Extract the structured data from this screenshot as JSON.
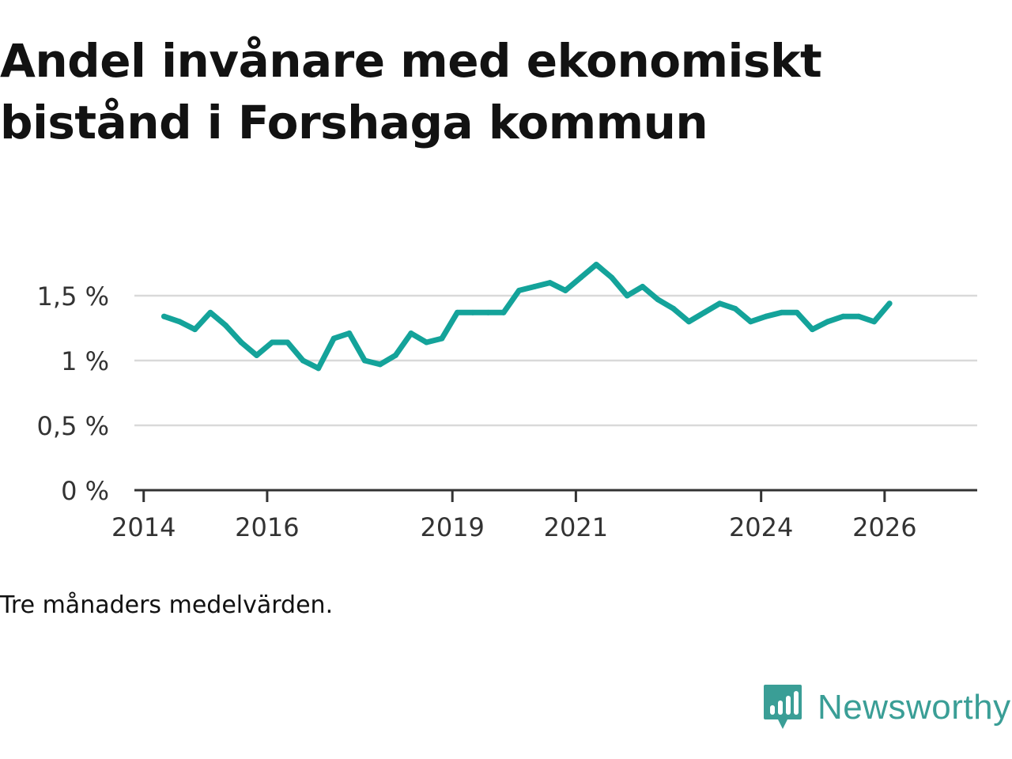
{
  "header": {
    "title_line1": "Andel invånare med ekonomiskt",
    "title_line2": "bistånd i Forshaga kommun"
  },
  "footer": {
    "note": "Tre månaders medelvärden.",
    "brand": "Newsworthy",
    "brand_icon": "newsworthy-logo-icon"
  },
  "colors": {
    "line": "#14a39a",
    "grid": "#d9d9d9",
    "axis": "#333333",
    "brand": "#3a9e96"
  },
  "chart_data": {
    "type": "line",
    "title": "Andel invånare med ekonomiskt bistånd i Forshaga kommun",
    "xlabel": "",
    "ylabel": "",
    "xlim": [
      2013.85,
      2027.5
    ],
    "ylim": [
      0,
      1.5
    ],
    "grid": true,
    "y_ticks": [
      {
        "value": 0,
        "label": "0 %"
      },
      {
        "value": 0.5,
        "label": "0,5 %"
      },
      {
        "value": 1,
        "label": "1 %"
      },
      {
        "value": 1.5,
        "label": "1,5 %"
      }
    ],
    "x_ticks": [
      {
        "value": 2014,
        "label": "2014"
      },
      {
        "value": 2016,
        "label": "2016"
      },
      {
        "value": 2019,
        "label": "2019"
      },
      {
        "value": 2021,
        "label": "2021"
      },
      {
        "value": 2024,
        "label": "2024"
      },
      {
        "value": 2026,
        "label": "2026"
      }
    ],
    "series": [
      {
        "name": "Andel invånare med ekonomiskt bistånd",
        "x": [
          2014.33,
          2014.58,
          2014.83,
          2015.08,
          2015.33,
          2015.58,
          2015.83,
          2016.08,
          2016.33,
          2016.58,
          2016.83,
          2017.08,
          2017.33,
          2017.58,
          2017.83,
          2018.08,
          2018.33,
          2018.58,
          2018.83,
          2019.08,
          2019.33,
          2019.58,
          2019.83,
          2020.08,
          2020.33,
          2020.58,
          2020.83,
          2021.08,
          2021.33,
          2021.58,
          2021.83,
          2022.08,
          2022.33,
          2022.58,
          2022.83,
          2023.08,
          2023.33,
          2023.58,
          2023.83,
          2024.08,
          2024.33,
          2024.58,
          2024.83,
          2025.08,
          2025.33,
          2025.58,
          2025.83,
          2026.08
        ],
        "values": [
          1.34,
          1.3,
          1.24,
          1.37,
          1.27,
          1.14,
          1.04,
          1.14,
          1.14,
          1.0,
          0.94,
          1.17,
          1.21,
          1.0,
          0.97,
          1.04,
          1.21,
          1.14,
          1.17,
          1.37,
          1.37,
          1.37,
          1.37,
          1.54,
          1.57,
          1.6,
          1.54,
          1.64,
          1.74,
          1.64,
          1.5,
          1.57,
          1.47,
          1.4,
          1.3,
          1.37,
          1.44,
          1.4,
          1.3,
          1.34,
          1.37,
          1.37,
          1.24,
          1.3,
          1.34,
          1.34,
          1.3,
          1.44
        ]
      }
    ]
  }
}
